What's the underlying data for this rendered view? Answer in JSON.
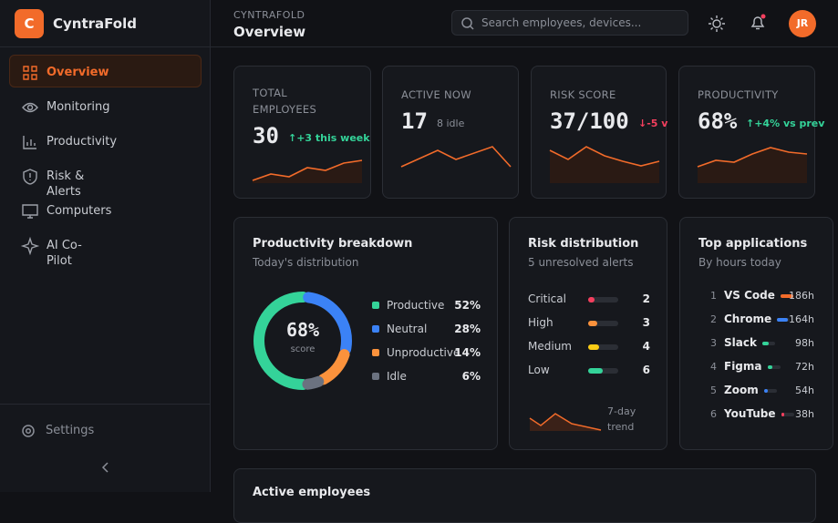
{
  "sidebar": {
    "logo": "C",
    "brand": "CyntraFold",
    "nav": [
      "Overview",
      "Monitoring",
      "Productivity",
      "Risk & Alerts",
      "Computers",
      "AI Co-Pilot"
    ],
    "settings": "Settings"
  },
  "header": {
    "eyebrow": "CYNTRAFOLD",
    "title": "Overview",
    "search_placeholder": "Search employees, devices...",
    "avatar": "JR"
  },
  "kpis": [
    {
      "label": "TOTAL EMPLOYEES",
      "value": "30",
      "delta": "↑+3 this week"
    },
    {
      "label": "ACTIVE NOW",
      "value": "17",
      "delta": "8 idle"
    },
    {
      "label": "RISK SCORE",
      "value": "37/100",
      "delta": "↓-5 v"
    },
    {
      "label": "PRODUCTIVITY",
      "value": "68%",
      "delta": "↑+4% vs prev"
    }
  ],
  "productivity": {
    "title": "Productivity breakdown",
    "subtitle": "Today's distribution",
    "center": "68%",
    "center_sub": "score",
    "items": [
      {
        "name": "Productive",
        "share": {
          "value": 52,
          "label": "52%"
        },
        "color": "#34d399"
      },
      {
        "name": "Neutral",
        "share": {
          "value": 28,
          "label": "28%"
        },
        "color": "#3b82f6"
      },
      {
        "name": "Unproductive",
        "share": {
          "value": 14,
          "label": "14%"
        },
        "color": "#fb923c"
      },
      {
        "name": "Idle",
        "share": {
          "value": 6,
          "label": "6%"
        },
        "color": "#6b7280"
      }
    ]
  },
  "risk": {
    "title": "Risk distribution",
    "subtitle": "5 unresolved alerts",
    "items": [
      {
        "name": "Critical",
        "count": 2,
        "color": "#f43f5e"
      },
      {
        "name": "High",
        "count": 3,
        "color": "#fb923c"
      },
      {
        "name": "Medium",
        "count": 4,
        "color": "#facc15"
      },
      {
        "name": "Low",
        "count": 6,
        "color": "#34d399"
      }
    ],
    "trend_label": "7-day trend"
  },
  "apps": {
    "title": "Top applications",
    "subtitle": "By hours today",
    "items": [
      {
        "rank": "1",
        "name": "VS Code",
        "hours": {
          "value": 186,
          "label": "186h"
        }
      },
      {
        "rank": "2",
        "name": "Chrome",
        "hours": {
          "value": 164,
          "label": "164h"
        }
      },
      {
        "rank": "3",
        "name": "Slack",
        "hours": {
          "value": 98,
          "label": "98h"
        }
      },
      {
        "rank": "4",
        "name": "Figma",
        "hours": {
          "value": 72,
          "label": "72h"
        }
      },
      {
        "rank": "5",
        "name": "Zoom",
        "hours": {
          "value": 54,
          "label": "54h"
        }
      },
      {
        "rank": "6",
        "name": "YouTube",
        "hours": {
          "value": 38,
          "label": "38h"
        }
      }
    ]
  },
  "active": {
    "title": "Active employees"
  }
}
